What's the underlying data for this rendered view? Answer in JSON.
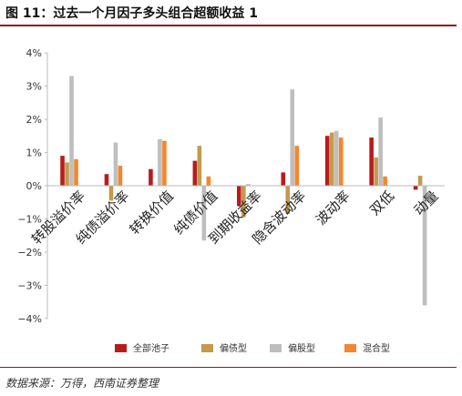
{
  "figure": {
    "title": "图 11：过去一个月因子多头组合超额收益 1",
    "source": "数据来源：万得，西南证券整理"
  },
  "colors": {
    "rule": "#8b1a1a",
    "series": [
      "#b81c1c",
      "#c39a4e",
      "#bebebe",
      "#f4862e"
    ]
  },
  "chart_data": {
    "type": "bar",
    "categories": [
      "转股溢价率",
      "纯债溢价率",
      "转换价值",
      "纯债价值",
      "到期收益率",
      "隐含波动率",
      "波动率",
      "双低",
      "动量"
    ],
    "series": [
      {
        "name": "全部池子",
        "values": [
          0.9,
          0.35,
          0.5,
          0.75,
          -0.6,
          0.4,
          1.5,
          1.45,
          -0.12
        ]
      },
      {
        "name": "偏债型",
        "values": [
          0.7,
          -0.45,
          0.0,
          1.2,
          -0.95,
          -0.85,
          1.6,
          0.85,
          0.3
        ]
      },
      {
        "name": "偏股型",
        "values": [
          3.3,
          1.3,
          1.4,
          -1.65,
          0.05,
          2.9,
          1.65,
          2.05,
          -3.6
        ]
      },
      {
        "name": "混合型",
        "values": [
          0.8,
          0.6,
          1.35,
          0.28,
          0.0,
          1.2,
          1.45,
          0.28,
          0.0
        ]
      }
    ],
    "yticks": [
      "4%",
      "3%",
      "2%",
      "1%",
      "0%",
      "−1%",
      "−2%",
      "−3%",
      "−4%"
    ],
    "ylim": [
      -4,
      4
    ],
    "grid": false,
    "legend_position": "bottom"
  }
}
